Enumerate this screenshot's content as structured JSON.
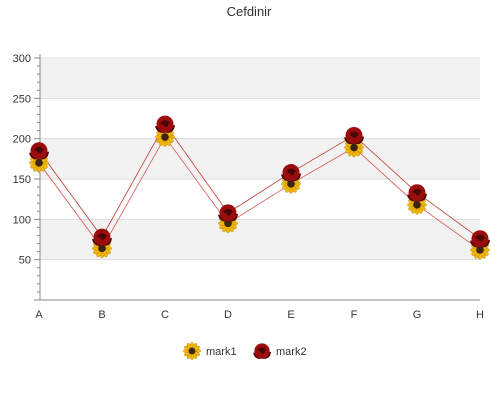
{
  "chart_data": {
    "type": "line",
    "title": "Cefdinir",
    "xlabel": "",
    "ylabel": "",
    "categories": [
      "A",
      "B",
      "C",
      "D",
      "E",
      "F",
      "G",
      "H"
    ],
    "ylim": [
      0,
      300
    ],
    "yticks": [
      50,
      100,
      150,
      200,
      250,
      300
    ],
    "grid": true,
    "legend_position": "bottom",
    "series": [
      {
        "name": "mark1",
        "values": [
          170,
          64,
          202,
          95,
          144,
          189,
          118,
          62
        ],
        "marker": "sunflower-icon",
        "line_color": "#d9534f"
      },
      {
        "name": "mark2",
        "values": [
          185,
          78,
          218,
          108,
          158,
          204,
          133,
          76
        ],
        "marker": "rose-icon",
        "line_color": "#c0392b"
      }
    ]
  },
  "colors": {
    "band": "#f2f2f2",
    "grid": "#dddddd",
    "axis": "#888888",
    "text": "#333333",
    "sunflower_petal": "#f2b705",
    "sunflower_center": "#3b2412",
    "rose": "#9b0d0d",
    "rose_dark": "#4a0505"
  }
}
